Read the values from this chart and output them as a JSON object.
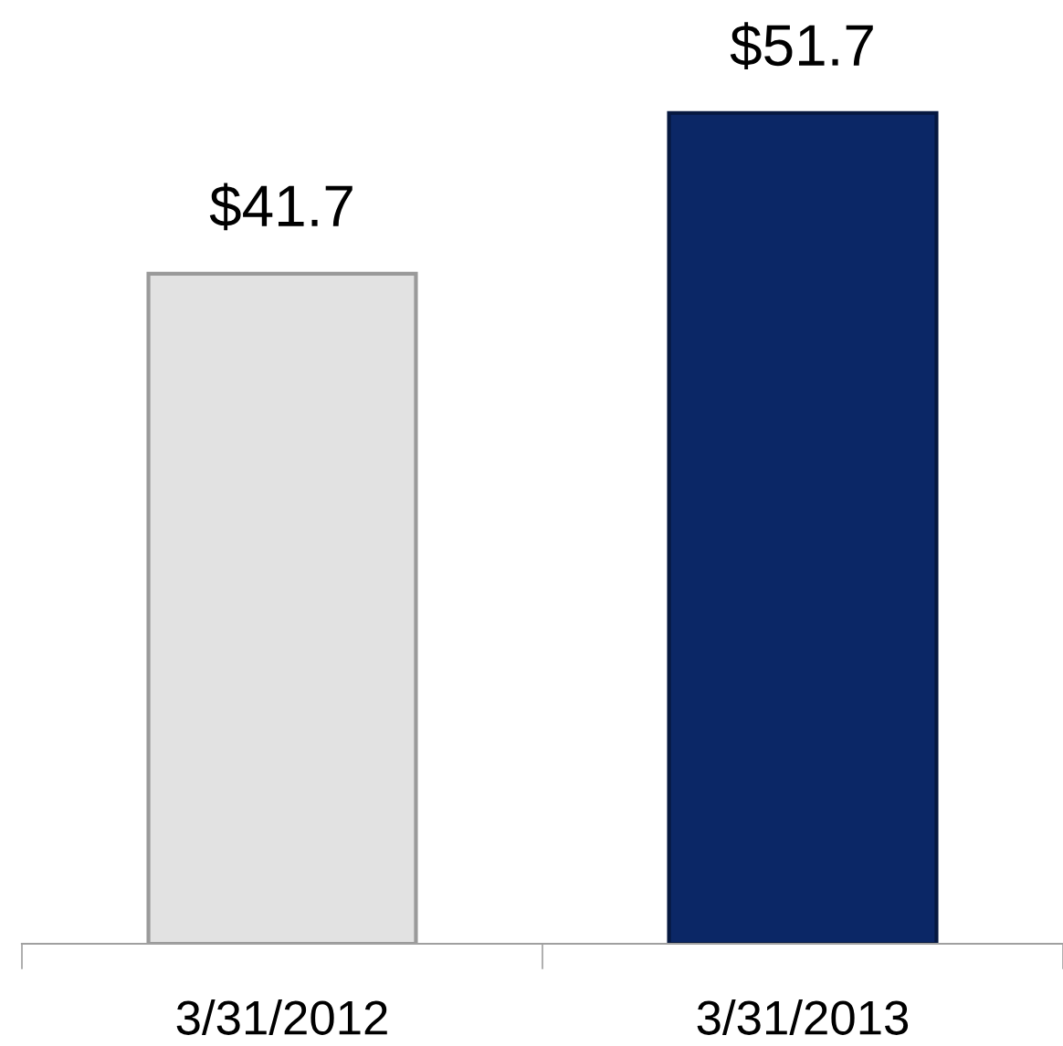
{
  "chart_data": {
    "type": "bar",
    "categories": [
      "3/31/2012",
      "3/31/2013"
    ],
    "values": [
      41.7,
      51.7
    ],
    "colors": [
      "#e2e2e2",
      "#0b2766"
    ],
    "value_labels": [
      "$41.7",
      "$51.7"
    ]
  }
}
